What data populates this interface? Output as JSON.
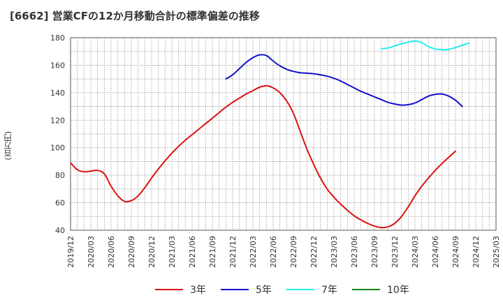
{
  "header": {
    "title": "[6662]  営業CFの12か月移動合計の標準偏差の推移"
  },
  "chart_data": {
    "type": "line",
    "title": "[6662]  営業CFの12か月移動合計の標準偏差の推移",
    "ylabel": "(百万円)",
    "xlabel": "",
    "ylim": [
      40,
      180
    ],
    "yticks": [
      40,
      60,
      80,
      100,
      120,
      140,
      160,
      180
    ],
    "xlim": [
      "2019-12",
      "2025-03"
    ],
    "xticks": [
      "2019/12",
      "2020/03",
      "2020/06",
      "2020/09",
      "2020/12",
      "2021/03",
      "2021/06",
      "2021/09",
      "2021/12",
      "2022/03",
      "2022/06",
      "2022/09",
      "2022/12",
      "2023/03",
      "2023/06",
      "2023/09",
      "2023/12",
      "2024/03",
      "2024/06",
      "2024/09",
      "2024/12",
      "2025/03"
    ],
    "grid": true,
    "legend_position": "bottom",
    "series": [
      {
        "name": "3年",
        "color": "#dd1111",
        "points": [
          [
            "2019-12",
            89.0
          ],
          [
            "2020-01",
            84.0
          ],
          [
            "2020-02",
            82.5
          ],
          [
            "2020-03",
            83.0
          ],
          [
            "2020-04",
            83.5
          ],
          [
            "2020-05",
            81.0
          ],
          [
            "2020-06",
            72.0
          ],
          [
            "2020-07",
            65.0
          ],
          [
            "2020-08",
            61.0
          ],
          [
            "2020-09",
            61.5
          ],
          [
            "2020-10",
            65.0
          ],
          [
            "2020-11",
            71.0
          ],
          [
            "2020-12",
            78.0
          ],
          [
            "2021-01",
            84.5
          ],
          [
            "2021-02",
            90.5
          ],
          [
            "2021-03",
            96.0
          ],
          [
            "2021-04",
            101.0
          ],
          [
            "2021-05",
            105.5
          ],
          [
            "2021-06",
            109.5
          ],
          [
            "2021-07",
            113.5
          ],
          [
            "2021-08",
            117.5
          ],
          [
            "2021-09",
            121.5
          ],
          [
            "2021-10",
            125.5
          ],
          [
            "2021-11",
            129.5
          ],
          [
            "2021-12",
            133.0
          ],
          [
            "2022-01",
            136.0
          ],
          [
            "2022-02",
            139.0
          ],
          [
            "2022-03",
            141.5
          ],
          [
            "2022-04",
            144.0
          ],
          [
            "2022-05",
            145.0
          ],
          [
            "2022-06",
            143.5
          ],
          [
            "2022-07",
            140.0
          ],
          [
            "2022-08",
            134.0
          ],
          [
            "2022-09",
            125.0
          ],
          [
            "2022-10",
            112.0
          ],
          [
            "2022-11",
            99.0
          ],
          [
            "2022-12",
            88.0
          ],
          [
            "2023-01",
            78.0
          ],
          [
            "2023-02",
            70.0
          ],
          [
            "2023-03",
            64.0
          ],
          [
            "2023-04",
            59.0
          ],
          [
            "2023-05",
            54.5
          ],
          [
            "2023-06",
            50.5
          ],
          [
            "2023-07",
            47.5
          ],
          [
            "2023-08",
            45.0
          ],
          [
            "2023-09",
            43.0
          ],
          [
            "2023-10",
            42.0
          ],
          [
            "2023-11",
            42.5
          ],
          [
            "2023-12",
            45.0
          ],
          [
            "2024-01",
            50.0
          ],
          [
            "2024-02",
            57.0
          ],
          [
            "2024-03",
            65.0
          ],
          [
            "2024-04",
            72.0
          ],
          [
            "2024-05",
            78.0
          ],
          [
            "2024-06",
            83.5
          ],
          [
            "2024-07",
            88.5
          ],
          [
            "2024-08",
            93.0
          ],
          [
            "2024-09",
            97.5
          ]
        ]
      },
      {
        "name": "5年",
        "color": "#1111cc",
        "points": [
          [
            "2021-11",
            150.0
          ],
          [
            "2021-12",
            153.0
          ],
          [
            "2022-01",
            157.5
          ],
          [
            "2022-02",
            162.0
          ],
          [
            "2022-03",
            165.5
          ],
          [
            "2022-04",
            167.5
          ],
          [
            "2022-05",
            167.0
          ],
          [
            "2022-06",
            163.0
          ],
          [
            "2022-07",
            159.5
          ],
          [
            "2022-08",
            157.0
          ],
          [
            "2022-09",
            155.5
          ],
          [
            "2022-10",
            154.5
          ],
          [
            "2022-11",
            154.2
          ],
          [
            "2022-12",
            153.8
          ],
          [
            "2023-01",
            153.0
          ],
          [
            "2023-02",
            152.0
          ],
          [
            "2023-03",
            150.5
          ],
          [
            "2023-04",
            148.5
          ],
          [
            "2023-05",
            146.0
          ],
          [
            "2023-06",
            143.5
          ],
          [
            "2023-07",
            141.0
          ],
          [
            "2023-08",
            139.0
          ],
          [
            "2023-09",
            137.0
          ],
          [
            "2023-10",
            135.0
          ],
          [
            "2023-11",
            133.0
          ],
          [
            "2023-12",
            131.8
          ],
          [
            "2024-01",
            131.0
          ],
          [
            "2024-02",
            131.3
          ],
          [
            "2024-03",
            132.5
          ],
          [
            "2024-04",
            135.0
          ],
          [
            "2024-05",
            137.5
          ],
          [
            "2024-06",
            138.8
          ],
          [
            "2024-07",
            139.0
          ],
          [
            "2024-08",
            137.5
          ],
          [
            "2024-09",
            134.5
          ],
          [
            "2024-10",
            130.0
          ]
        ]
      },
      {
        "name": "7年",
        "color": "#22eeee",
        "points": [
          [
            "2023-10",
            172.0
          ],
          [
            "2023-11",
            172.5
          ],
          [
            "2023-12",
            174.0
          ],
          [
            "2024-01",
            175.5
          ],
          [
            "2024-02",
            176.8
          ],
          [
            "2024-03",
            177.5
          ],
          [
            "2024-04",
            176.5
          ],
          [
            "2024-05",
            173.5
          ],
          [
            "2024-06",
            171.8
          ],
          [
            "2024-07",
            171.2
          ],
          [
            "2024-08",
            171.5
          ],
          [
            "2024-09",
            172.8
          ],
          [
            "2024-10",
            174.5
          ],
          [
            "2024-11",
            176.0
          ]
        ]
      },
      {
        "name": "10年",
        "color": "#118811",
        "points": []
      }
    ]
  }
}
